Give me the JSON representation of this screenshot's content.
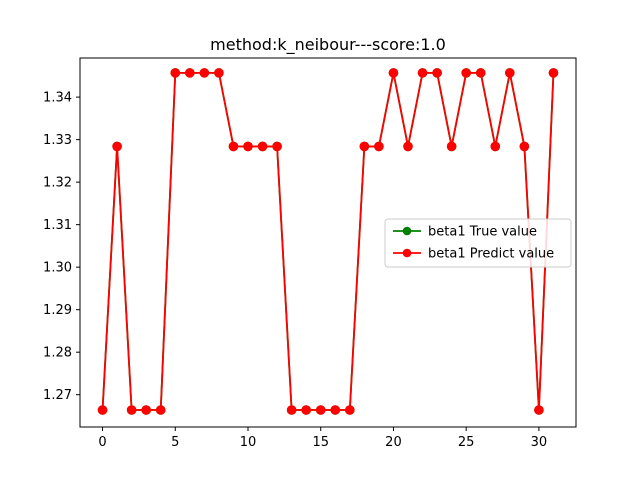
{
  "chart_data": {
    "type": "line",
    "title": "method:k_neibour---score:1.0",
    "xlabel": "",
    "ylabel": "",
    "xlim": [
      -1.55,
      32.55
    ],
    "ylim": [
      1.2624,
      1.3492
    ],
    "xticks": [
      0,
      5,
      10,
      15,
      20,
      25,
      30
    ],
    "yticks": [
      1.27,
      1.28,
      1.29,
      1.3,
      1.31,
      1.32,
      1.33,
      1.34
    ],
    "ytick_labels": [
      "1.27",
      "1.28",
      "1.29",
      "1.30",
      "1.31",
      "1.32",
      "1.33",
      "1.34"
    ],
    "grid": false,
    "legend_position": "center-right",
    "x": [
      0,
      1,
      2,
      3,
      4,
      5,
      6,
      7,
      8,
      9,
      10,
      11,
      12,
      13,
      14,
      15,
      16,
      17,
      18,
      19,
      20,
      21,
      22,
      23,
      24,
      25,
      26,
      27,
      28,
      29,
      30,
      31
    ],
    "series": [
      {
        "name": "beta1 True value",
        "color": "#008000",
        "values": [
          1.2664,
          1.3284,
          1.2664,
          1.2664,
          1.2664,
          1.3457,
          1.3457,
          1.3457,
          1.3457,
          1.3284,
          1.3284,
          1.3284,
          1.3284,
          1.2664,
          1.2664,
          1.2664,
          1.2664,
          1.2664,
          1.3284,
          1.3284,
          1.3457,
          1.3284,
          1.3457,
          1.3457,
          1.3284,
          1.3457,
          1.3457,
          1.3284,
          1.3457,
          1.3284,
          1.2664,
          1.3457
        ]
      },
      {
        "name": "beta1 Predict value",
        "color": "#ff0000",
        "values": [
          1.2664,
          1.3284,
          1.2664,
          1.2664,
          1.2664,
          1.3457,
          1.3457,
          1.3457,
          1.3457,
          1.3284,
          1.3284,
          1.3284,
          1.3284,
          1.2664,
          1.2664,
          1.2664,
          1.2664,
          1.2664,
          1.3284,
          1.3284,
          1.3457,
          1.3284,
          1.3457,
          1.3457,
          1.3284,
          1.3457,
          1.3457,
          1.3284,
          1.3457,
          1.3284,
          1.2664,
          1.3457
        ]
      }
    ]
  }
}
